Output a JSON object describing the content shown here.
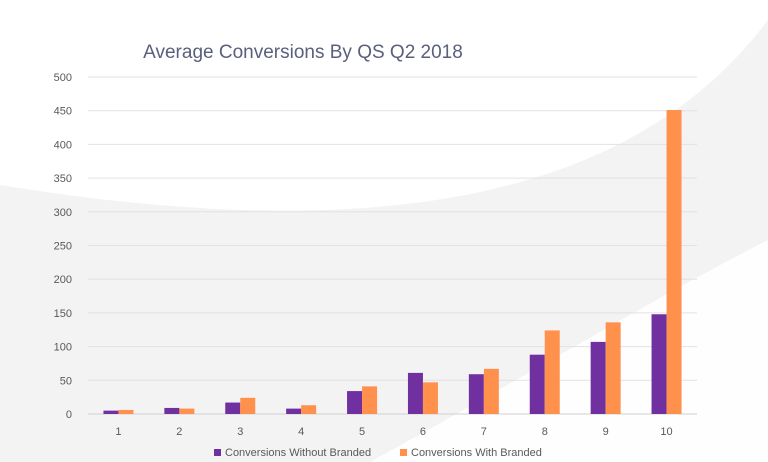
{
  "chart_data": {
    "type": "bar",
    "title": "Average Conversions By QS Q2 2018",
    "xlabel": "",
    "ylabel": "",
    "categories": [
      "1",
      "2",
      "3",
      "4",
      "5",
      "6",
      "7",
      "8",
      "9",
      "10"
    ],
    "series": [
      {
        "name": "Conversions Without Branded",
        "color": "#7030a0",
        "values": [
          5,
          9,
          17,
          8,
          34,
          61,
          59,
          88,
          107,
          148
        ]
      },
      {
        "name": "Conversions With Branded",
        "color": "#ff914d",
        "values": [
          6,
          8,
          24,
          13,
          41,
          47,
          67,
          124,
          136,
          451
        ]
      }
    ],
    "y_ticks": [
      "0",
      "50",
      "100",
      "150",
      "200",
      "250",
      "300",
      "350",
      "400",
      "450",
      "500"
    ],
    "ylim": [
      0,
      500
    ],
    "grid": true,
    "legend_position": "bottom"
  }
}
